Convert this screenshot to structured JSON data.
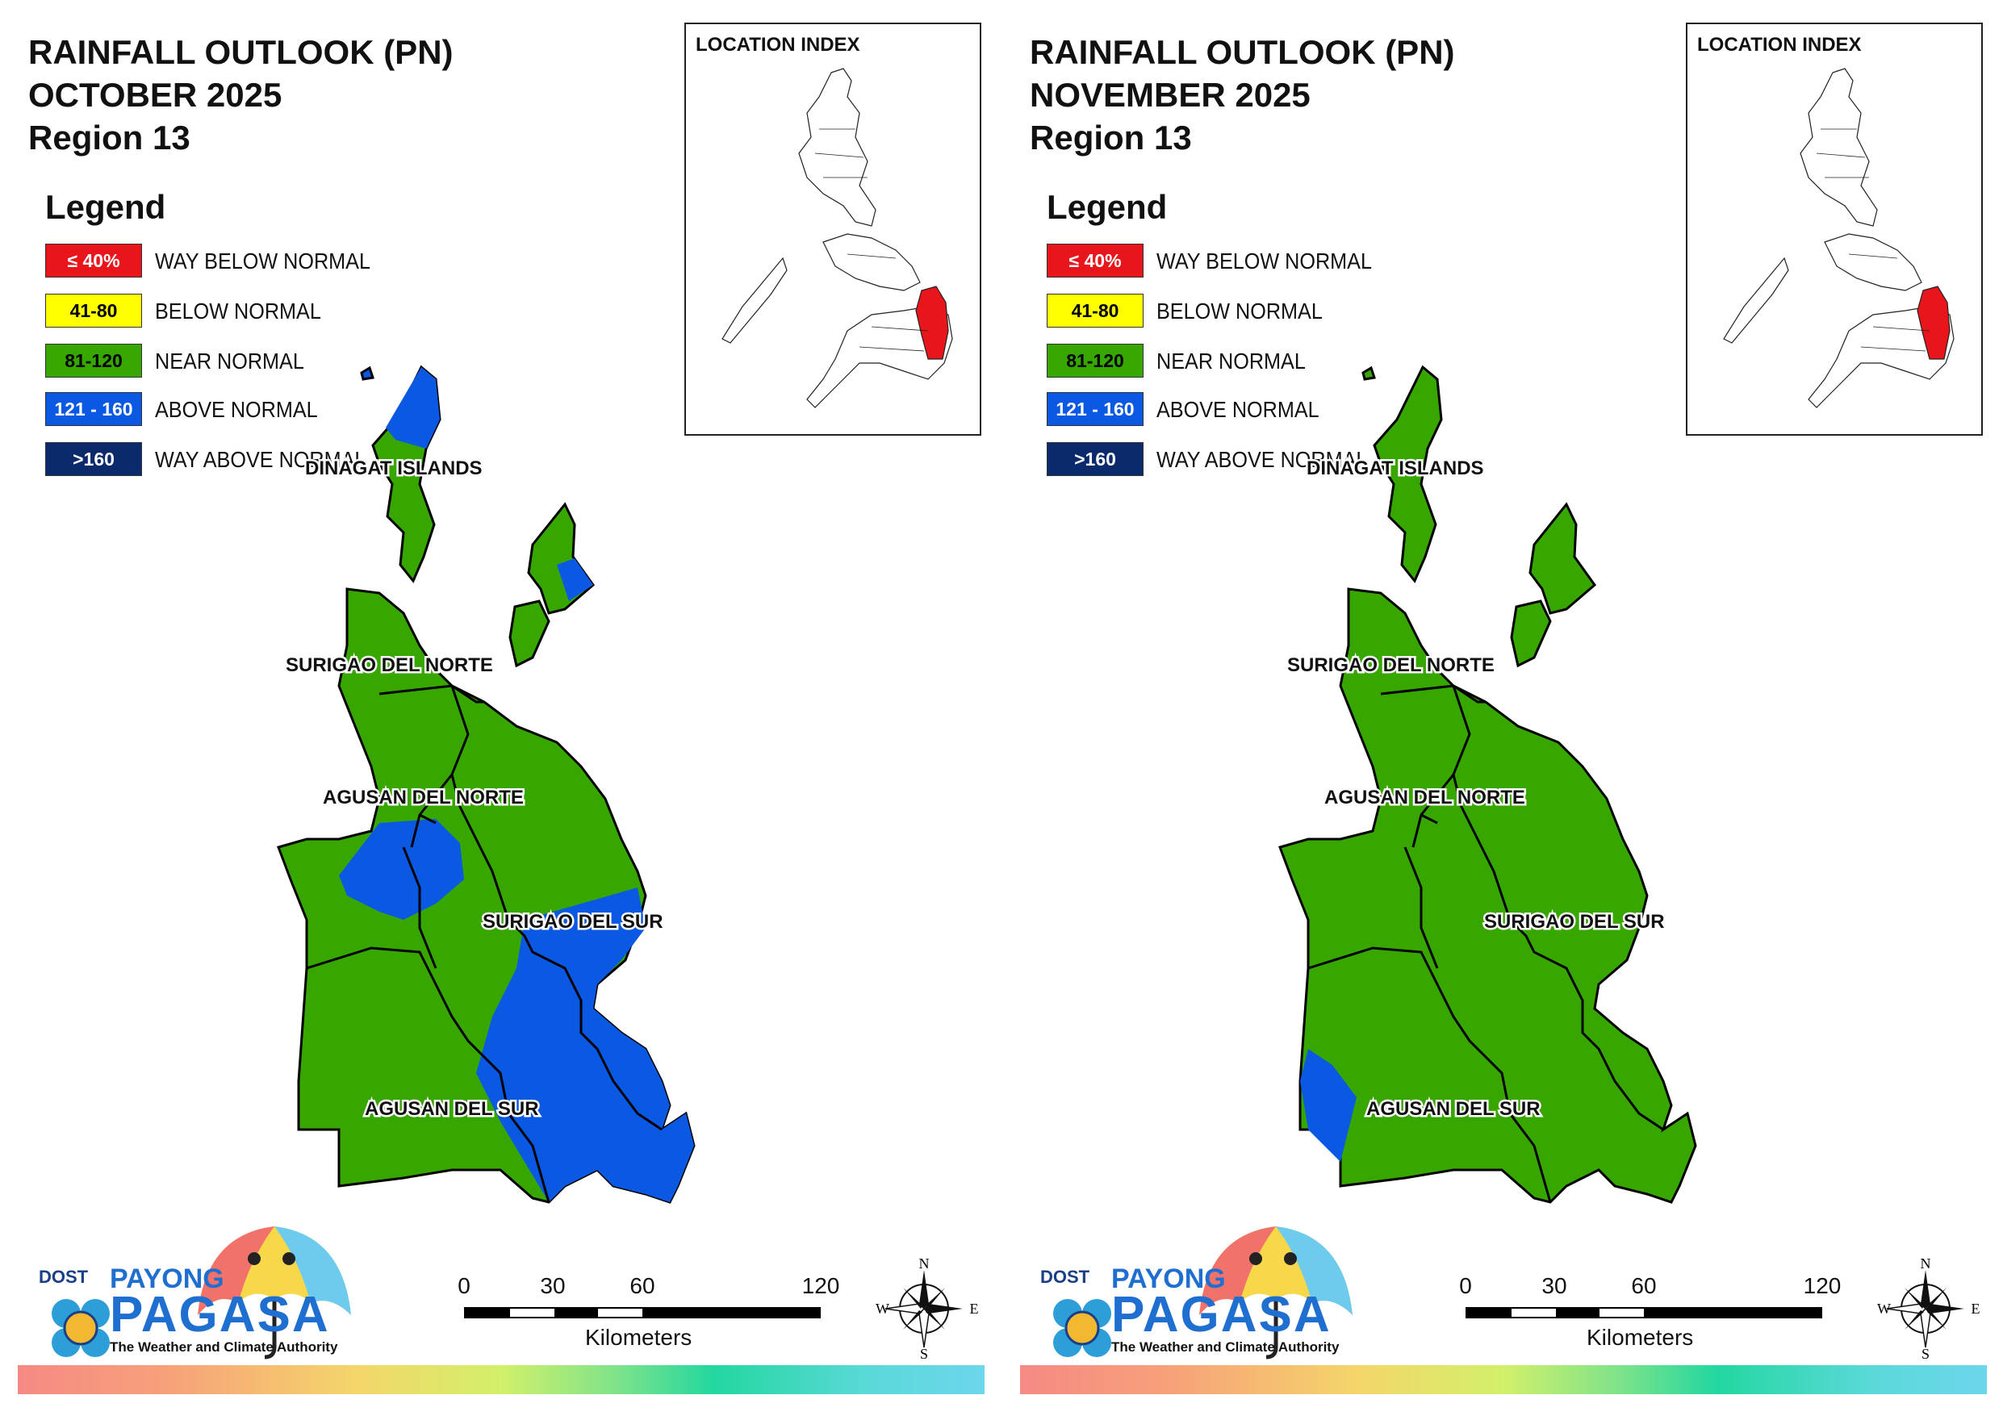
{
  "panels": [
    {
      "title_line1": "RAINFALL OUTLOOK (PN)",
      "title_line2": "OCTOBER 2025",
      "title_line3": "Region 13",
      "index_title": "LOCATION INDEX",
      "provinces": {
        "dinagat": "DINAGAT ISLANDS",
        "surigao_norte": "SURIGAO DEL NORTE",
        "agusan_norte": "AGUSAN DEL NORTE",
        "surigao_sur": "SURIGAO DEL SUR",
        "agusan_sur": "AGUSAN DEL SUR"
      },
      "dominant_category": "near-normal",
      "secondary_category": "above-normal"
    },
    {
      "title_line1": "RAINFALL OUTLOOK (PN)",
      "title_line2": "NOVEMBER 2025",
      "title_line3": "Region 13",
      "index_title": "LOCATION INDEX",
      "provinces": {
        "dinagat": "DINAGAT ISLANDS",
        "surigao_norte": "SURIGAO DEL NORTE",
        "agusan_norte": "AGUSAN DEL NORTE",
        "surigao_sur": "SURIGAO DEL SUR",
        "agusan_sur": "AGUSAN DEL SUR"
      },
      "dominant_category": "near-normal",
      "secondary_category": "above-normal"
    }
  ],
  "legend": {
    "title": "Legend",
    "items": [
      {
        "range": "≤ 40%",
        "label": "WAY BELOW NORMAL",
        "color": "#e8161b",
        "text_color": "#ffffff"
      },
      {
        "range": "41-80",
        "label": "BELOW NORMAL",
        "color": "#ffff00",
        "text_color": "#000000"
      },
      {
        "range": "81-120",
        "label": "NEAR NORMAL",
        "color": "#37a700",
        "text_color": "#000000"
      },
      {
        "range": "121 - 160",
        "label": "ABOVE NORMAL",
        "color": "#0b58e3",
        "text_color": "#ffffff"
      },
      {
        "range": ">160",
        "label": "WAY ABOVE NORMAL",
        "color": "#0a2a6b",
        "text_color": "#ffffff"
      }
    ]
  },
  "scale": {
    "ticks": [
      "0",
      "30",
      "60",
      "120"
    ],
    "unit": "Kilometers"
  },
  "compass": {
    "n": "N",
    "s": "S",
    "e": "E",
    "w": "W"
  },
  "logo": {
    "dost": "DOST",
    "payong": "PAYONG",
    "pagasa": "PAGASA",
    "tagline": "The Weather and Climate Authority"
  }
}
